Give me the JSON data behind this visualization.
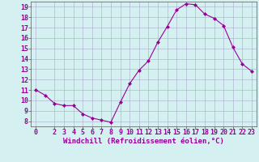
{
  "x": [
    0,
    1,
    2,
    3,
    4,
    5,
    6,
    7,
    8,
    9,
    10,
    11,
    12,
    13,
    14,
    15,
    16,
    17,
    18,
    19,
    20,
    21,
    22,
    23
  ],
  "y": [
    11.0,
    10.5,
    9.7,
    9.5,
    9.5,
    8.7,
    8.3,
    8.1,
    7.9,
    9.8,
    11.6,
    12.9,
    13.8,
    15.6,
    17.1,
    18.7,
    19.3,
    19.2,
    18.3,
    17.9,
    17.2,
    15.1,
    13.5,
    12.8
  ],
  "line_color": "#990099",
  "marker": "D",
  "marker_size": 2,
  "bg_color": "#d4f0f0",
  "grid_color": "#aaaacc",
  "xlabel": "Windchill (Refroidissement éolien,°C)",
  "ylabel": "",
  "title": "",
  "xlim": [
    -0.5,
    23.5
  ],
  "ylim": [
    7.5,
    19.5
  ],
  "yticks": [
    8,
    9,
    10,
    11,
    12,
    13,
    14,
    15,
    16,
    17,
    18,
    19
  ],
  "xticks": [
    0,
    2,
    3,
    4,
    5,
    6,
    7,
    8,
    9,
    10,
    11,
    12,
    13,
    14,
    15,
    16,
    17,
    18,
    19,
    20,
    21,
    22,
    23
  ],
  "tick_label_color": "#990099",
  "xlabel_color": "#990099",
  "label_fontsize": 6.5,
  "tick_fontsize": 6.0
}
